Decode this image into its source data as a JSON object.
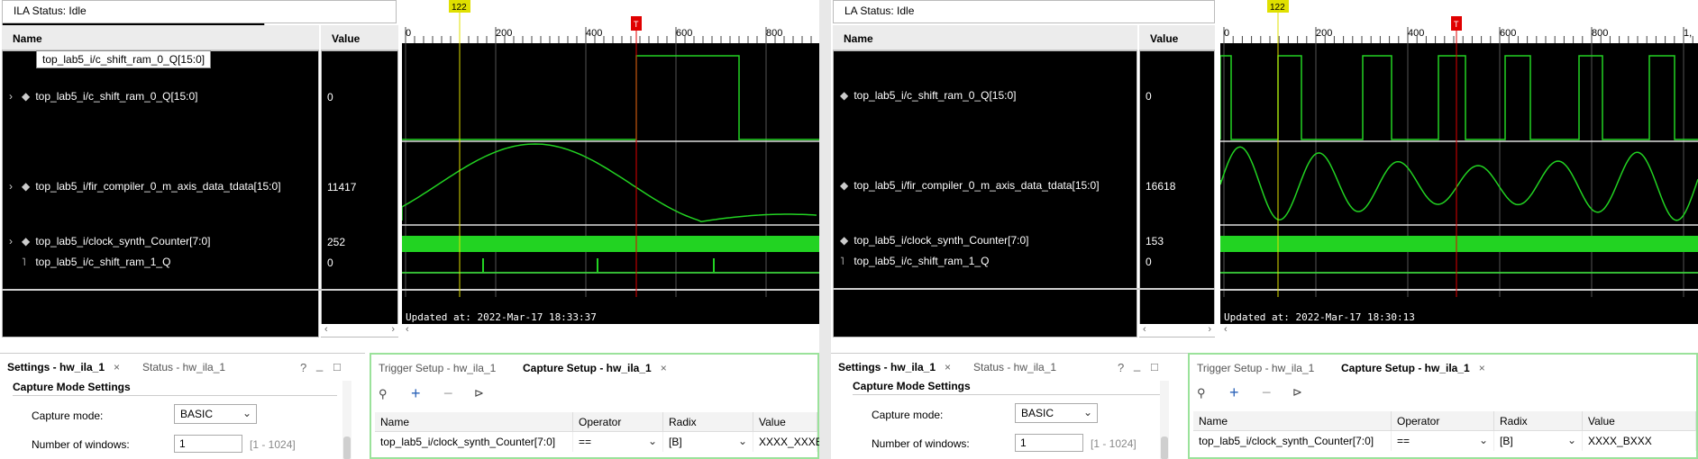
{
  "left": {
    "status": "ILA Status:  Idle",
    "name_header": "Name",
    "value_header": "Value",
    "tooltip": "top_lab5_i/c_shift_ram_0_Q[15:0]",
    "signals": [
      {
        "name": "top_lab5_i/c_shift_ram_0_Q[15:0]",
        "value": "0"
      },
      {
        "name": "top_lab5_i/fir_compiler_0_m_axis_data_tdata[15:0]",
        "value": "11417"
      },
      {
        "name": "top_lab5_i/clock_synth_Counter[7:0]",
        "value": "252"
      },
      {
        "name": "top_lab5_i/c_shift_ram_1_Q",
        "value": "0"
      }
    ],
    "ruler_ticks": [
      "0",
      "200",
      "400",
      "600",
      "800"
    ],
    "cursor_marker": "122",
    "trigger_marker": "T",
    "updated": "Updated at: 2022-Mar-17 18:33:37",
    "settings_tab": "Settings - hw_ila_1",
    "status_tab": "Status - hw_ila_1",
    "capture_mode_settings": "Capture Mode Settings",
    "capture_mode_label": "Capture mode:",
    "capture_mode_value": "BASIC",
    "windows_label": "Number of windows:",
    "windows_value": "1",
    "windows_hint": "[1 - 1024]",
    "trigger_tab": "Trigger Setup - hw_ila_1",
    "capture_tab": "Capture Setup - hw_ila_1",
    "table_headers": [
      "Name",
      "Operator",
      "Radix",
      "Value"
    ],
    "table_row": {
      "name": "top_lab5_i/clock_synth_Counter[7:0]",
      "operator": "==",
      "radix": "[B]",
      "value": "XXXX_XXXB"
    }
  },
  "right": {
    "status": "LA Status:  Idle",
    "name_header": "Name",
    "value_header": "Value",
    "signals": [
      {
        "name": "top_lab5_i/c_shift_ram_0_Q[15:0]",
        "value": "0"
      },
      {
        "name": "top_lab5_i/fir_compiler_0_m_axis_data_tdata[15:0]",
        "value": "16618"
      },
      {
        "name": "top_lab5_i/clock_synth_Counter[7:0]",
        "value": "153"
      },
      {
        "name": "top_lab5_i/c_shift_ram_1_Q",
        "value": "0"
      }
    ],
    "ruler_ticks": [
      "0",
      "200",
      "400",
      "600",
      "800",
      "1,"
    ],
    "cursor_marker": "122",
    "trigger_marker": "T",
    "updated": "Updated at: 2022-Mar-17 18:30:13",
    "settings_tab": "Settings - hw_ila_1",
    "status_tab": "Status - hw_ila_1",
    "capture_mode_settings": "Capture Mode Settings",
    "capture_mode_label": "Capture mode:",
    "capture_mode_value": "BASIC",
    "windows_label": "Number of windows:",
    "windows_value": "1",
    "windows_hint": "[1 - 1024]",
    "trigger_tab": "Trigger Setup - hw_ila_1",
    "capture_tab": "Capture Setup - hw_ila_1",
    "table_headers": [
      "Name",
      "Operator",
      "Radix",
      "Value"
    ],
    "table_row": {
      "name": "top_lab5_i/clock_synth_Counter[7:0]",
      "operator": "==",
      "radix": "[B]",
      "value": "XXXX_BXXX"
    }
  },
  "icons": {
    "help": "?",
    "minimize": "_",
    "maximize": "□",
    "close": "×",
    "search": "search-icon",
    "add": "plus-icon",
    "remove": "minus-icon",
    "probe": "probe-icon"
  },
  "colors": {
    "wave_green": "#22d322",
    "cursor_yellow": "#e0e000",
    "trigger_red": "#e00000",
    "active_panel_border": "#9be29b"
  }
}
